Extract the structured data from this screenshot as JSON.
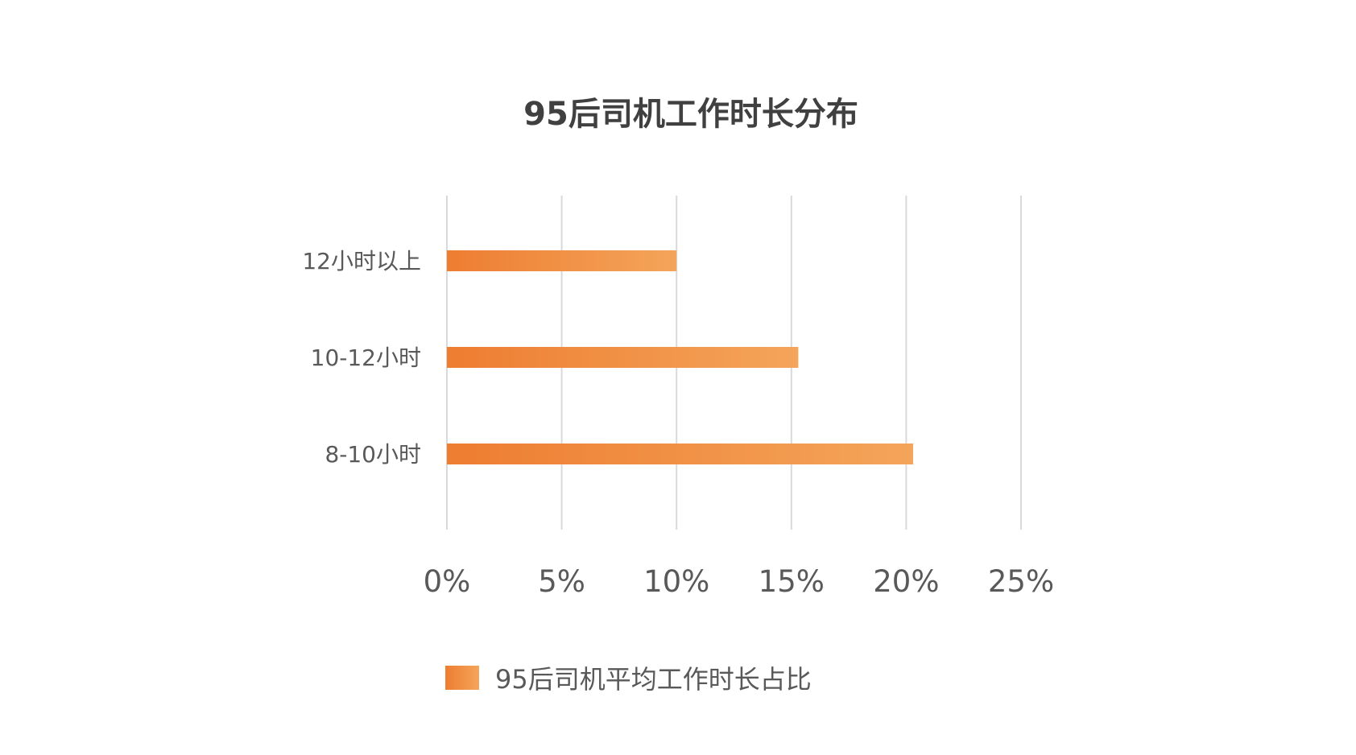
{
  "chart_data": {
    "type": "bar",
    "orientation": "horizontal",
    "title": "95后司机工作时长分布",
    "categories": [
      "12小时以上",
      "10-12小时",
      "8-10小时"
    ],
    "series": [
      {
        "name": "95后司机平均工作时长占比",
        "values": [
          10,
          15.3,
          20.3
        ]
      }
    ],
    "xlim": [
      0,
      25
    ],
    "x_ticks": [
      0,
      5,
      10,
      15,
      20,
      25
    ],
    "x_tick_labels": [
      "0%",
      "5%",
      "10%",
      "15%",
      "20%",
      "25%"
    ],
    "xlabel": "",
    "ylabel": "",
    "grid": true,
    "legend_position": "bottom",
    "colors": {
      "bar_start": "#ED7D31",
      "bar_end": "#F4A55A",
      "gridline": "#D9D9D9",
      "text": "#595959",
      "title": "#404040"
    }
  }
}
